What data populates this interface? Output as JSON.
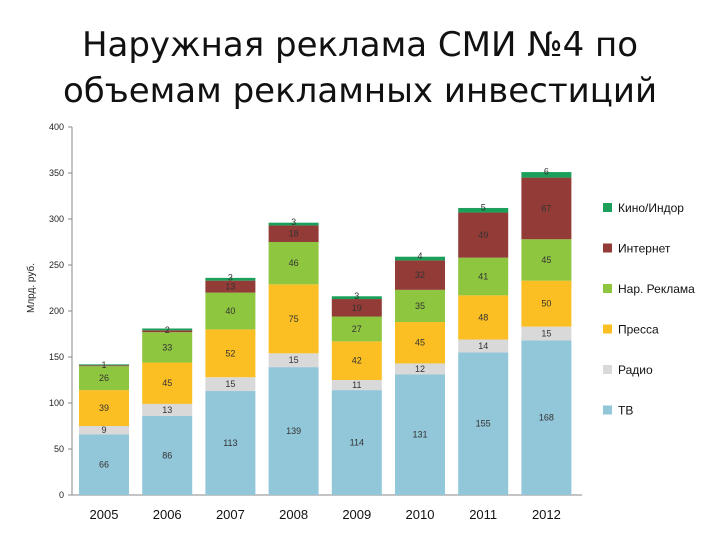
{
  "title": "Наружная реклама СМИ №4 по объемам рекламных инвестиций",
  "colors": {
    "tv": "#92c6d9",
    "radio": "#d9d9d9",
    "press": "#fbbf24",
    "outdoor": "#8ec640",
    "internet": "#933b36",
    "cinema": "#1aa05a"
  },
  "chart_data": {
    "type": "bar",
    "stacked": true,
    "title": "Наружная реклама СМИ №4 по объемам рекламных инвестиций",
    "ylabel": "Млрд. руб.",
    "xlabel": "",
    "ylim": [
      0,
      400
    ],
    "yticks": [
      "0",
      "50",
      "100",
      "150",
      "200",
      "250",
      "300",
      "350",
      "400"
    ],
    "categories": [
      "2005",
      "2006",
      "2007",
      "2008",
      "2009",
      "2010",
      "2011",
      "2012"
    ],
    "series": [
      {
        "name": "ТВ",
        "color_key": "tv",
        "values": [
          66,
          86,
          113,
          139,
          114,
          131,
          155,
          168
        ]
      },
      {
        "name": "Радио",
        "color_key": "radio",
        "values": [
          9,
          13,
          15,
          15,
          11,
          12,
          14,
          15
        ]
      },
      {
        "name": "Пресса",
        "color_key": "press",
        "values": [
          39,
          45,
          52,
          75,
          42,
          45,
          48,
          50
        ]
      },
      {
        "name": "Нар. Реклама",
        "color_key": "outdoor",
        "values": [
          26,
          33,
          40,
          46,
          27,
          35,
          41,
          45
        ]
      },
      {
        "name": "Интернет",
        "color_key": "internet",
        "values": [
          1,
          2,
          13,
          18,
          19,
          32,
          49,
          67
        ]
      },
      {
        "name": "Кино/Индор",
        "color_key": "cinema",
        "values": [
          1,
          2,
          3,
          3,
          3,
          4,
          5,
          6
        ]
      }
    ],
    "data_labels": [
      [
        "66",
        "86",
        "113",
        "139",
        "114",
        "131",
        "155",
        "168"
      ],
      [
        "9",
        "13",
        "15",
        "15",
        "11",
        "12",
        "14",
        "15"
      ],
      [
        "39",
        "45",
        "52",
        "75",
        "42",
        "45",
        "48",
        "50"
      ],
      [
        "26",
        "33",
        "40",
        "46",
        "27",
        "35",
        "41",
        "45"
      ],
      [
        "1",
        "2",
        "13",
        "18",
        "19",
        "32",
        "49",
        "67"
      ],
      [
        "",
        "",
        "3",
        "3",
        "3",
        "4",
        "5",
        "6"
      ]
    ],
    "legend": {
      "placement": "right",
      "entries": [
        "Кино/Индор",
        "Интернет",
        "Нар. Реклама",
        "Пресса",
        "Радио",
        "ТВ"
      ]
    },
    "grid": false
  }
}
